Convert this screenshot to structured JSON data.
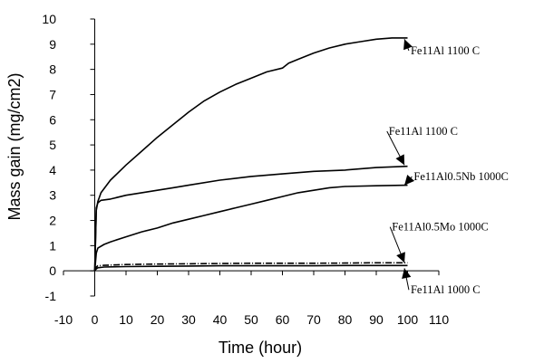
{
  "chart_data": {
    "type": "line",
    "title": "",
    "xlabel": "Time (hour)",
    "ylabel": "Mass gain (mg/cm2)",
    "xlim": [
      -10,
      110
    ],
    "ylim": [
      -1,
      10
    ],
    "xticks": [
      "-10",
      "0",
      "10",
      "20",
      "30",
      "40",
      "50",
      "60",
      "70",
      "80",
      "90",
      "100",
      "110"
    ],
    "yticks": [
      "-1",
      "0",
      "1",
      "2",
      "3",
      "4",
      "5",
      "6",
      "7",
      "8",
      "9",
      "10"
    ],
    "grid": false,
    "legend": "none",
    "series": [
      {
        "x": [
          0,
          0.5,
          1,
          2,
          5,
          10,
          15,
          20,
          25,
          30,
          35,
          40,
          45,
          50,
          55,
          60,
          62,
          65,
          70,
          75,
          80,
          85,
          90,
          95,
          100
        ],
        "values": [
          0,
          2.4,
          2.75,
          3.1,
          3.6,
          4.2,
          4.75,
          5.3,
          5.8,
          6.3,
          6.75,
          7.1,
          7.4,
          7.65,
          7.9,
          8.05,
          8.25,
          8.4,
          8.65,
          8.85,
          9.0,
          9.1,
          9.2,
          9.25,
          9.25
        ]
      },
      {
        "x": [
          0,
          0.5,
          1,
          2,
          5,
          10,
          15,
          20,
          25,
          30,
          40,
          50,
          60,
          70,
          80,
          90,
          100
        ],
        "values": [
          0,
          2.5,
          2.7,
          2.8,
          2.85,
          3.0,
          3.1,
          3.2,
          3.3,
          3.4,
          3.6,
          3.75,
          3.85,
          3.95,
          4.0,
          4.1,
          4.15
        ]
      },
      {
        "x": [
          0,
          0.5,
          1,
          3,
          5,
          10,
          15,
          20,
          25,
          30,
          35,
          40,
          45,
          50,
          55,
          60,
          65,
          70,
          75,
          80,
          90,
          100
        ],
        "values": [
          0,
          0.7,
          0.9,
          1.05,
          1.15,
          1.35,
          1.55,
          1.7,
          1.9,
          2.05,
          2.2,
          2.35,
          2.5,
          2.65,
          2.8,
          2.95,
          3.1,
          3.2,
          3.3,
          3.35,
          3.38,
          3.4
        ]
      },
      {
        "x": [
          0,
          0.5,
          1,
          3,
          10,
          20,
          30,
          40,
          50,
          60,
          70,
          80,
          90,
          100
        ],
        "values": [
          0,
          0.15,
          0.2,
          0.22,
          0.25,
          0.27,
          0.28,
          0.29,
          0.3,
          0.3,
          0.3,
          0.31,
          0.32,
          0.32
        ]
      },
      {
        "x": [
          0,
          0.5,
          1,
          3,
          10,
          20,
          30,
          40,
          50,
          60,
          70,
          80,
          90,
          100
        ],
        "values": [
          0,
          0.08,
          0.12,
          0.15,
          0.17,
          0.18,
          0.19,
          0.2,
          0.2,
          0.2,
          0.2,
          0.21,
          0.21,
          0.21
        ]
      }
    ],
    "annotations": [
      {
        "text": "Fe11Al 1100 C",
        "arrow_x": 99,
        "arrow_y": 9.2,
        "text_x": 101,
        "text_y": 8.6
      },
      {
        "text": "Fe11Al 1100 C",
        "arrow_x": 99,
        "arrow_y": 4.2,
        "text_x": 94,
        "text_y": 5.4
      },
      {
        "text": "Fe11Al0.5Nb 1000C",
        "arrow_x": 99,
        "arrow_y": 3.4,
        "text_x": 102,
        "text_y": 3.6
      },
      {
        "text": "Fe11Al0.5Mo 1000C",
        "arrow_x": 99,
        "arrow_y": 0.32,
        "text_x": 95,
        "text_y": 1.6
      },
      {
        "text": "Fe11Al 1000 C",
        "arrow_x": 99,
        "arrow_y": 0.1,
        "text_x": 101,
        "text_y": -0.9
      }
    ]
  }
}
